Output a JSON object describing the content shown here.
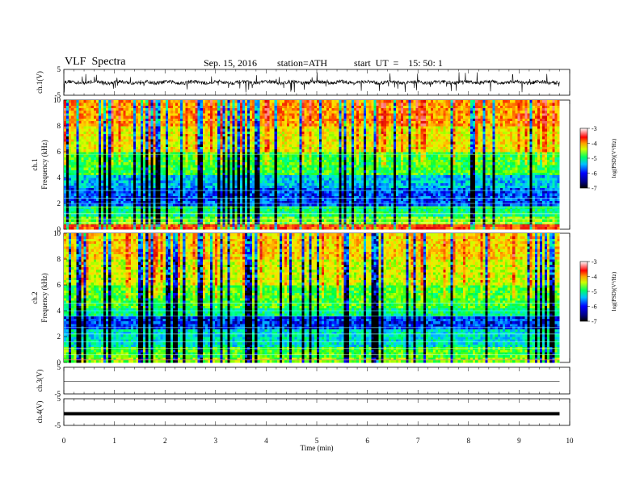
{
  "header": {
    "title": "VLF  Spectra",
    "date": "Sep. 15, 2016",
    "station": "station=ATH",
    "start": "start  UT  =    15: 50: 1"
  },
  "chart_data": [
    {
      "type": "line",
      "panel": "ch1-waveform",
      "ylabel": "ch.1(V)",
      "ylim": [
        -5,
        5
      ],
      "yticks": [
        "5",
        "-5"
      ],
      "xlim": [
        0,
        10
      ],
      "description_values": "noisy waveform centered near 0 V with spikes to about ±4 V"
    },
    {
      "type": "heatmap",
      "panel": "ch1-spectrogram",
      "ylabel_top": "ch.1",
      "ylabel": "Frequency  (kHz)",
      "ylim": [
        0,
        10
      ],
      "yticks": [
        "0",
        "2",
        "4",
        "6",
        "8",
        "10"
      ],
      "xlim": [
        0,
        9.8
      ],
      "colorbar": {
        "label": "log(PSD)(V²/Hz)",
        "range": [
          -7,
          -3
        ],
        "ticks": [
          "-3",
          "-4",
          "-5",
          "-6",
          "-7"
        ]
      }
    },
    {
      "type": "heatmap",
      "panel": "ch2-spectrogram",
      "ylabel_top": "ch.2",
      "ylabel": "Frequency  (kHz)",
      "ylim": [
        0,
        10
      ],
      "yticks": [
        "0",
        "2",
        "4",
        "6",
        "8",
        "10"
      ],
      "xlim": [
        0,
        9.8
      ],
      "colorbar": {
        "label": "log(PSD)(V²/Hz)",
        "range": [
          -7,
          -3
        ],
        "ticks": [
          "-3",
          "-4",
          "-5",
          "-6",
          "-7"
        ]
      }
    },
    {
      "type": "line",
      "panel": "ch3-waveform",
      "ylabel": "ch.3(V)",
      "ylim": [
        -5,
        5
      ],
      "yticks": [
        "5",
        "-5"
      ],
      "level": 0
    },
    {
      "type": "line",
      "panel": "ch4-waveform",
      "ylabel": "ch.4(V)",
      "ylim": [
        -5,
        5
      ],
      "yticks": [
        "5",
        "-5"
      ],
      "level": 0
    },
    {
      "type": "axis",
      "xlabel": "Time  (min)",
      "xlim": [
        0,
        10
      ],
      "xticks": [
        "0",
        "1",
        "2",
        "3",
        "4",
        "5",
        "6",
        "7",
        "8",
        "9",
        "10"
      ]
    }
  ]
}
